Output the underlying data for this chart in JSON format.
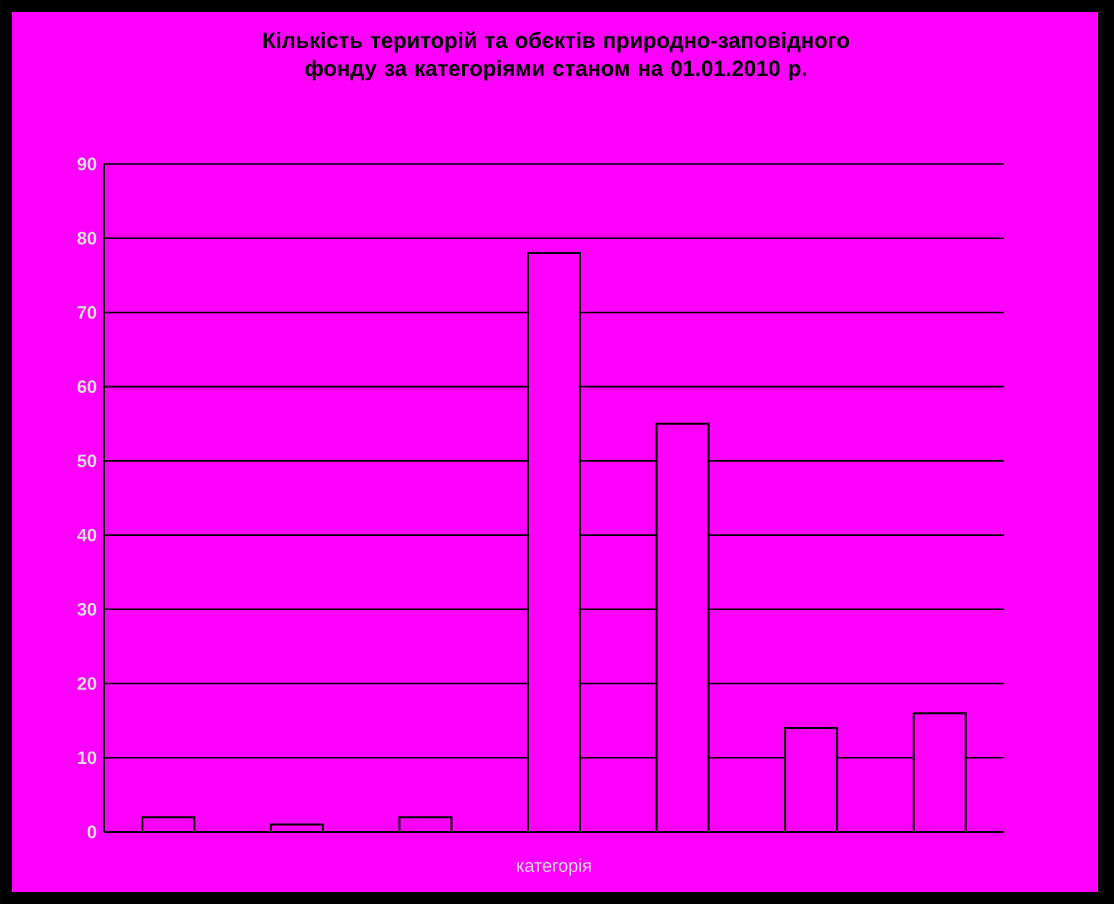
{
  "chart_data": {
    "type": "bar",
    "title": "Кількість територій та обєктів природно-заповідного фонду за категоріями станом на 01.01.2010 р.",
    "xlabel": "категорія",
    "categories": [
      null,
      null,
      null,
      null,
      null,
      null,
      null
    ],
    "values": [
      2,
      1,
      2,
      78,
      55,
      14,
      16
    ],
    "color": "#ff00ff",
    "ylim": [
      0,
      90
    ],
    "yticks": [
      0,
      10,
      20,
      30,
      40,
      50,
      60,
      70,
      80,
      90
    ],
    "grid": "y"
  }
}
